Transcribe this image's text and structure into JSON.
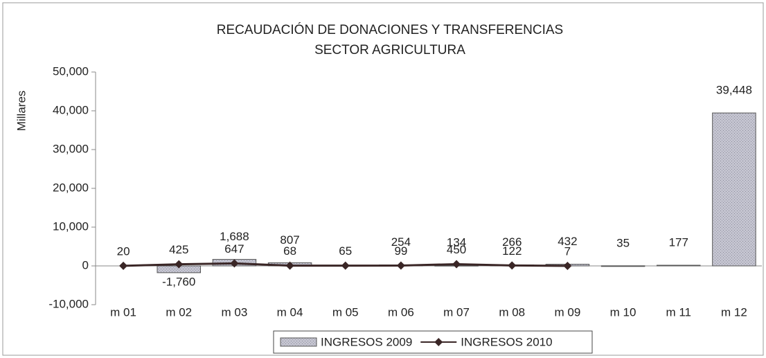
{
  "chart_data": {
    "type": "bar-line",
    "title": "RECAUDACIÓN DE DONACIONES Y TRANSFERENCIAS",
    "subtitle": "SECTOR AGRICULTURA",
    "y_label": "Millares",
    "categories": [
      "m 01",
      "m 02",
      "m 03",
      "m 04",
      "m 05",
      "m 06",
      "m 07",
      "m 08",
      "m 09",
      "m 10",
      "m 11",
      "m 12"
    ],
    "series": [
      {
        "name": "INGRESOS 2009",
        "type": "bar",
        "color": "#b9b9c6",
        "values": [
          null,
          -1760,
          1688,
          807,
          null,
          254,
          134,
          266,
          432,
          35,
          177,
          39448
        ],
        "value_labels": [
          null,
          "-1,760",
          "1,688",
          "807",
          null,
          "254",
          "134",
          "266",
          "432",
          "35",
          "177",
          "39,448"
        ]
      },
      {
        "name": "INGRESOS 2010",
        "type": "line",
        "color": "#3a2626",
        "values": [
          20,
          425,
          647,
          68,
          65,
          99,
          450,
          122,
          7,
          null,
          null,
          null
        ],
        "value_labels": [
          "20",
          "425",
          "647",
          "68",
          "65",
          "99",
          "450",
          "122",
          "7",
          null,
          null,
          null
        ]
      }
    ],
    "ylim": [
      -10000,
      50000
    ],
    "yticks": [
      {
        "value": -10000,
        "label": "-10,000"
      },
      0,
      {
        "value": 10000,
        "label": "10,000"
      },
      {
        "value": 20000,
        "label": "20,000"
      },
      {
        "value": 30000,
        "label": "30,000"
      },
      {
        "value": 40000,
        "label": "40,000"
      },
      {
        "value": 50000,
        "label": "50,000"
      }
    ],
    "legend": "bottom"
  }
}
